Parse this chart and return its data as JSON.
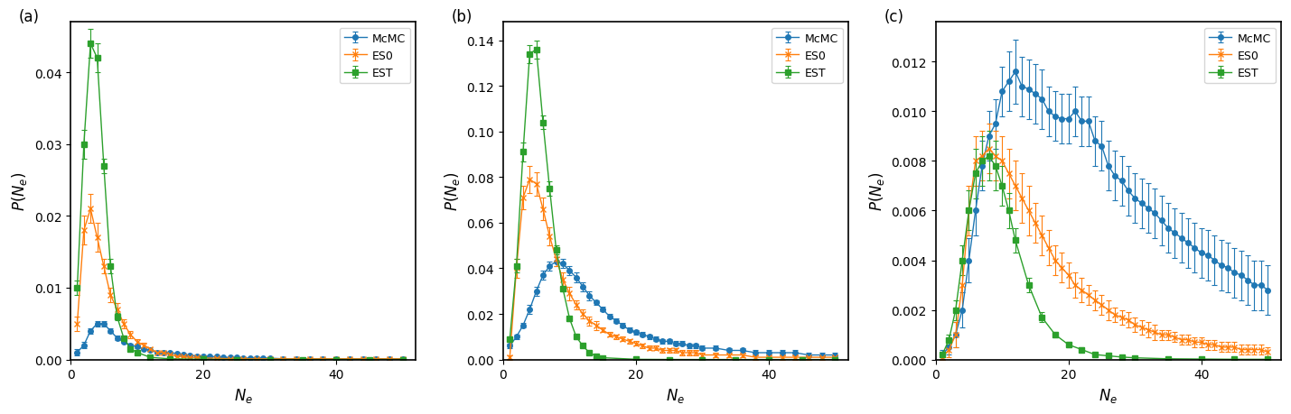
{
  "colors": {
    "McMC": "#1f77b4",
    "ES0": "#ff7f0e",
    "EST": "#2ca02c"
  },
  "markers": {
    "McMC": "o",
    "ES0": "x",
    "EST": "s"
  },
  "panel_a": {
    "ylim": [
      0,
      0.047
    ],
    "yticks": [
      0.0,
      0.01,
      0.02,
      0.03,
      0.04
    ],
    "xticks": [
      0,
      20,
      40
    ],
    "McMC": {
      "x": [
        1,
        2,
        3,
        4,
        5,
        6,
        7,
        8,
        9,
        10,
        11,
        12,
        13,
        14,
        15,
        16,
        17,
        18,
        19,
        20,
        21,
        22,
        23,
        24,
        25,
        26,
        27,
        28,
        29,
        30,
        32,
        34,
        36,
        38,
        40,
        42,
        44,
        46,
        48,
        50
      ],
      "y": [
        0.001,
        0.002,
        0.004,
        0.005,
        0.005,
        0.004,
        0.003,
        0.0025,
        0.002,
        0.0018,
        0.0015,
        0.0013,
        0.001,
        0.001,
        0.001,
        0.0008,
        0.0007,
        0.0006,
        0.0005,
        0.0005,
        0.0004,
        0.0004,
        0.0003,
        0.0003,
        0.0003,
        0.0002,
        0.0002,
        0.0002,
        0.0002,
        0.0002,
        0.0001,
        0.0001,
        0.0001,
        0.0001,
        0.0001,
        0.0001,
        0.0001,
        0.0001,
        0.0001,
        0.0001
      ],
      "yerr": [
        0.0004,
        0.0004,
        0.0004,
        0.0004,
        0.0004,
        0.0003,
        0.0003,
        0.0002,
        0.0002,
        0.0002,
        0.0001,
        0.0001,
        0.0001,
        0.0001,
        0.0001,
        0.0001,
        0.0001,
        0.0001,
        0.0001,
        0.0001,
        5e-05,
        5e-05,
        5e-05,
        5e-05,
        5e-05,
        5e-05,
        5e-05,
        5e-05,
        5e-05,
        5e-05,
        5e-05,
        5e-05,
        5e-05,
        5e-05,
        5e-05,
        5e-05,
        5e-05,
        5e-05,
        5e-05,
        5e-05
      ]
    },
    "ES0": {
      "x": [
        1,
        2,
        3,
        4,
        5,
        6,
        7,
        8,
        9,
        10,
        11,
        12,
        13,
        14,
        15,
        16,
        17,
        18,
        19,
        20,
        22,
        24,
        26,
        28,
        30,
        32,
        34,
        36,
        38,
        40,
        42,
        44,
        46,
        48,
        50
      ],
      "y": [
        0.005,
        0.018,
        0.021,
        0.017,
        0.013,
        0.009,
        0.007,
        0.005,
        0.0035,
        0.0025,
        0.002,
        0.0015,
        0.001,
        0.001,
        0.0007,
        0.0005,
        0.0004,
        0.0003,
        0.0003,
        0.0002,
        0.0002,
        0.0001,
        0.0001,
        0.0001,
        0.0001,
        0.0001,
        0.0001,
        0.0001,
        0.0001,
        0.0001,
        0.0001,
        0.0001,
        0.0001,
        0.0001,
        0.0001
      ],
      "yerr": [
        0.001,
        0.002,
        0.002,
        0.002,
        0.001,
        0.001,
        0.0008,
        0.0006,
        0.0005,
        0.0004,
        0.0003,
        0.0002,
        0.0002,
        0.0002,
        0.0001,
        0.0001,
        0.0001,
        0.0001,
        0.0001,
        0.0001,
        0.0001,
        0.0001,
        0.0001,
        0.0001,
        0.0001,
        0.0001,
        0.0001,
        0.0001,
        0.0001,
        0.0001,
        0.0001,
        0.0001,
        0.0001,
        0.0001,
        0.0001
      ]
    },
    "EST": {
      "x": [
        1,
        2,
        3,
        4,
        5,
        6,
        7,
        8,
        9,
        10,
        12,
        15,
        20,
        25,
        30,
        35,
        40,
        45,
        50
      ],
      "y": [
        0.01,
        0.03,
        0.044,
        0.042,
        0.027,
        0.013,
        0.006,
        0.003,
        0.0015,
        0.001,
        0.0003,
        0.0001,
        3e-05,
        1e-05,
        1e-05,
        1e-05,
        1e-05,
        1e-05,
        1e-05
      ],
      "yerr": [
        0.001,
        0.002,
        0.002,
        0.002,
        0.001,
        0.001,
        0.0005,
        0.0002,
        0.0001,
        0.0001,
        5e-05,
        3e-05,
        1e-05,
        1e-05,
        1e-05,
        1e-05,
        1e-05,
        1e-05,
        1e-05
      ]
    }
  },
  "panel_b": {
    "ylim": [
      0,
      0.148
    ],
    "yticks": [
      0.0,
      0.02,
      0.04,
      0.06,
      0.08,
      0.1,
      0.12,
      0.14
    ],
    "xticks": [
      0,
      20,
      40
    ],
    "McMC": {
      "x": [
        1,
        2,
        3,
        4,
        5,
        6,
        7,
        8,
        9,
        10,
        11,
        12,
        13,
        14,
        15,
        16,
        17,
        18,
        19,
        20,
        21,
        22,
        23,
        24,
        25,
        26,
        27,
        28,
        29,
        30,
        32,
        34,
        36,
        38,
        40,
        42,
        44,
        46,
        48,
        50
      ],
      "y": [
        0.006,
        0.01,
        0.015,
        0.022,
        0.03,
        0.037,
        0.041,
        0.043,
        0.042,
        0.039,
        0.036,
        0.032,
        0.028,
        0.025,
        0.022,
        0.019,
        0.017,
        0.015,
        0.013,
        0.012,
        0.011,
        0.01,
        0.009,
        0.008,
        0.008,
        0.007,
        0.007,
        0.006,
        0.006,
        0.005,
        0.005,
        0.004,
        0.004,
        0.003,
        0.003,
        0.003,
        0.003,
        0.002,
        0.002,
        0.002
      ],
      "yerr": [
        0.001,
        0.001,
        0.001,
        0.002,
        0.002,
        0.002,
        0.002,
        0.002,
        0.002,
        0.002,
        0.002,
        0.002,
        0.002,
        0.001,
        0.001,
        0.001,
        0.001,
        0.001,
        0.001,
        0.001,
        0.001,
        0.001,
        0.001,
        0.001,
        0.001,
        0.001,
        0.001,
        0.001,
        0.001,
        0.001,
        0.001,
        0.001,
        0.001,
        0.001,
        0.001,
        0.001,
        0.001,
        0.001,
        0.001,
        0.001
      ]
    },
    "ES0": {
      "x": [
        1,
        2,
        3,
        4,
        5,
        6,
        7,
        8,
        9,
        10,
        11,
        12,
        13,
        14,
        15,
        16,
        17,
        18,
        19,
        20,
        21,
        22,
        23,
        24,
        25,
        26,
        27,
        28,
        29,
        30,
        32,
        34,
        36,
        38,
        40,
        42,
        44,
        46,
        48,
        50
      ],
      "y": [
        0.001,
        0.04,
        0.071,
        0.079,
        0.077,
        0.066,
        0.054,
        0.044,
        0.035,
        0.029,
        0.024,
        0.02,
        0.017,
        0.015,
        0.013,
        0.011,
        0.01,
        0.009,
        0.008,
        0.007,
        0.006,
        0.005,
        0.005,
        0.004,
        0.004,
        0.004,
        0.003,
        0.003,
        0.003,
        0.002,
        0.002,
        0.002,
        0.002,
        0.001,
        0.001,
        0.001,
        0.001,
        0.001,
        0.001,
        0.001
      ],
      "yerr": [
        0.001,
        0.004,
        0.005,
        0.006,
        0.005,
        0.005,
        0.004,
        0.003,
        0.003,
        0.003,
        0.002,
        0.002,
        0.002,
        0.002,
        0.001,
        0.001,
        0.001,
        0.001,
        0.001,
        0.001,
        0.001,
        0.001,
        0.001,
        0.001,
        0.001,
        0.001,
        0.001,
        0.001,
        0.001,
        0.001,
        0.001,
        0.001,
        0.001,
        0.001,
        0.001,
        0.001,
        0.001,
        0.001,
        0.001,
        0.001
      ]
    },
    "EST": {
      "x": [
        1,
        2,
        3,
        4,
        5,
        6,
        7,
        8,
        9,
        10,
        11,
        12,
        13,
        14,
        15,
        20,
        25,
        30,
        35,
        40,
        45,
        50
      ],
      "y": [
        0.009,
        0.041,
        0.091,
        0.134,
        0.136,
        0.104,
        0.075,
        0.048,
        0.031,
        0.018,
        0.01,
        0.006,
        0.003,
        0.0015,
        0.0008,
        0.0001,
        3e-05,
        1e-05,
        1e-05,
        1e-05,
        1e-05,
        1e-05
      ],
      "yerr": [
        0.001,
        0.003,
        0.004,
        0.004,
        0.004,
        0.003,
        0.003,
        0.002,
        0.001,
        0.001,
        0.001,
        0.0005,
        0.0003,
        0.0002,
        0.0001,
        5e-05,
        2e-05,
        1e-05,
        1e-05,
        1e-05,
        1e-05,
        1e-05
      ]
    }
  },
  "panel_c": {
    "ylim": [
      0,
      0.0136
    ],
    "yticks": [
      0.0,
      0.002,
      0.004,
      0.006,
      0.008,
      0.01,
      0.012
    ],
    "xticks": [
      0,
      20,
      40
    ],
    "McMC": {
      "x": [
        1,
        2,
        3,
        4,
        5,
        6,
        7,
        8,
        9,
        10,
        11,
        12,
        13,
        14,
        15,
        16,
        17,
        18,
        19,
        20,
        21,
        22,
        23,
        24,
        25,
        26,
        27,
        28,
        29,
        30,
        31,
        32,
        33,
        34,
        35,
        36,
        37,
        38,
        39,
        40,
        41,
        42,
        43,
        44,
        45,
        46,
        47,
        48,
        49,
        50
      ],
      "y": [
        0.0002,
        0.0005,
        0.001,
        0.002,
        0.004,
        0.006,
        0.0078,
        0.009,
        0.0095,
        0.0108,
        0.0112,
        0.0116,
        0.011,
        0.0109,
        0.0107,
        0.0105,
        0.01,
        0.0098,
        0.0097,
        0.0097,
        0.01,
        0.0096,
        0.0096,
        0.0088,
        0.0086,
        0.0078,
        0.0074,
        0.0072,
        0.0068,
        0.0065,
        0.0063,
        0.0061,
        0.0059,
        0.0056,
        0.0053,
        0.0051,
        0.0049,
        0.0047,
        0.0045,
        0.0043,
        0.0042,
        0.004,
        0.0038,
        0.0037,
        0.0035,
        0.0034,
        0.0032,
        0.003,
        0.003,
        0.0028
      ],
      "yerr": [
        0.0002,
        0.0003,
        0.0005,
        0.0007,
        0.0009,
        0.001,
        0.001,
        0.001,
        0.001,
        0.001,
        0.0012,
        0.0013,
        0.0012,
        0.0012,
        0.0012,
        0.0012,
        0.001,
        0.001,
        0.001,
        0.001,
        0.001,
        0.001,
        0.001,
        0.001,
        0.001,
        0.001,
        0.001,
        0.001,
        0.001,
        0.001,
        0.001,
        0.001,
        0.001,
        0.001,
        0.001,
        0.001,
        0.001,
        0.001,
        0.001,
        0.001,
        0.001,
        0.001,
        0.001,
        0.001,
        0.001,
        0.001,
        0.001,
        0.001,
        0.001,
        0.001
      ]
    },
    "ES0": {
      "x": [
        1,
        2,
        3,
        4,
        5,
        6,
        7,
        8,
        9,
        10,
        11,
        12,
        13,
        14,
        15,
        16,
        17,
        18,
        19,
        20,
        21,
        22,
        23,
        24,
        25,
        26,
        27,
        28,
        29,
        30,
        31,
        32,
        33,
        34,
        35,
        36,
        37,
        38,
        39,
        40,
        41,
        42,
        43,
        44,
        45,
        46,
        47,
        48,
        49,
        50
      ],
      "y": [
        0.0001,
        0.0004,
        0.001,
        0.003,
        0.006,
        0.008,
        0.0082,
        0.0085,
        0.0082,
        0.008,
        0.0075,
        0.007,
        0.0065,
        0.006,
        0.0055,
        0.005,
        0.0045,
        0.004,
        0.0037,
        0.0034,
        0.003,
        0.0028,
        0.0026,
        0.0024,
        0.0022,
        0.002,
        0.0018,
        0.0017,
        0.0016,
        0.0014,
        0.0013,
        0.0012,
        0.0011,
        0.001,
        0.001,
        0.0009,
        0.0008,
        0.0008,
        0.0007,
        0.0007,
        0.0006,
        0.0006,
        0.0005,
        0.0005,
        0.0005,
        0.0004,
        0.0004,
        0.0004,
        0.0004,
        0.0003
      ],
      "yerr": [
        0.0001,
        0.0003,
        0.0005,
        0.001,
        0.001,
        0.001,
        0.001,
        0.001,
        0.001,
        0.001,
        0.001,
        0.001,
        0.001,
        0.001,
        0.0008,
        0.0008,
        0.0007,
        0.0006,
        0.0006,
        0.0005,
        0.0005,
        0.0005,
        0.0004,
        0.0004,
        0.0004,
        0.0004,
        0.0003,
        0.0003,
        0.0003,
        0.0003,
        0.0003,
        0.0003,
        0.0003,
        0.0002,
        0.0002,
        0.0002,
        0.0002,
        0.0002,
        0.0002,
        0.0002,
        0.0002,
        0.0002,
        0.0002,
        0.0002,
        0.0002,
        0.0002,
        0.0002,
        0.0002,
        0.0002,
        0.0002
      ]
    },
    "EST": {
      "x": [
        1,
        2,
        3,
        4,
        5,
        6,
        7,
        8,
        9,
        10,
        11,
        12,
        14,
        16,
        18,
        20,
        22,
        24,
        26,
        28,
        30,
        35,
        40,
        45,
        50
      ],
      "y": [
        0.0002,
        0.0008,
        0.002,
        0.004,
        0.006,
        0.0075,
        0.008,
        0.0082,
        0.0078,
        0.007,
        0.006,
        0.0048,
        0.003,
        0.0017,
        0.001,
        0.0006,
        0.0004,
        0.0002,
        0.00015,
        0.0001,
        7e-05,
        3e-05,
        2e-05,
        1e-05,
        1e-05
      ],
      "yerr": [
        0.0001,
        0.0002,
        0.0004,
        0.0006,
        0.0008,
        0.001,
        0.001,
        0.001,
        0.001,
        0.0008,
        0.0007,
        0.0005,
        0.0003,
        0.0002,
        0.0001,
        0.0001,
        8e-05,
        6e-05,
        5e-05,
        4e-05,
        3e-05,
        2e-05,
        1e-05,
        1e-05,
        1e-05
      ]
    }
  }
}
